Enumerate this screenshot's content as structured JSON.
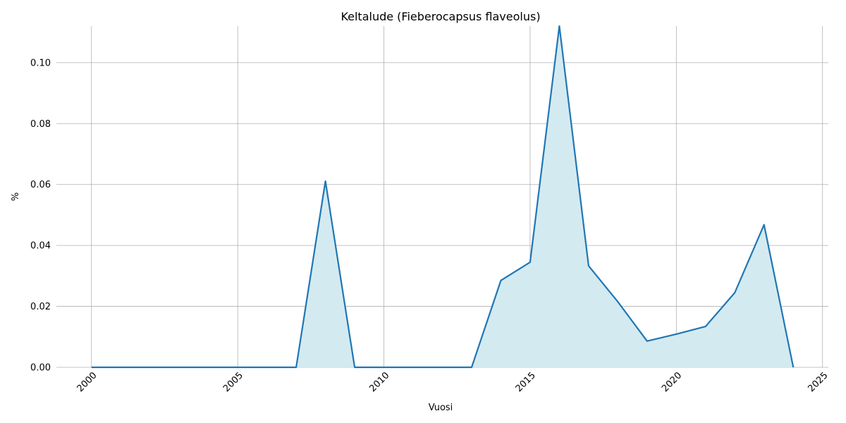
{
  "chart_data": {
    "type": "area",
    "title": "Keltalude (Fieberocapsus flaveolus)",
    "xlabel": "Vuosi",
    "ylabel": "%",
    "x": [
      2000,
      2001,
      2002,
      2003,
      2004,
      2005,
      2006,
      2007,
      2008,
      2009,
      2010,
      2011,
      2012,
      2013,
      2014,
      2015,
      2016,
      2017,
      2018,
      2019,
      2020,
      2021,
      2022,
      2023,
      2024
    ],
    "series": [
      {
        "color": "#1f77b4",
        "fill_color": "#d4eaf1",
        "values": [
          0,
          0,
          0,
          0,
          0,
          0,
          0,
          0,
          0.0611,
          0,
          0,
          0,
          0,
          0,
          0.0285,
          0.0345,
          0.112,
          0.0333,
          0.0215,
          0.0086,
          0.0109,
          0.0134,
          0.0245,
          0.0468,
          0
        ]
      }
    ],
    "xlim": [
      1998.8,
      2025.2
    ],
    "xticks": [
      2000,
      2005,
      2010,
      2015,
      2020,
      2025
    ],
    "ylim": [
      0,
      0.112
    ],
    "yticks": [
      {
        "value": 0,
        "label": "0.00"
      },
      {
        "value": 0.02,
        "label": "0.02"
      },
      {
        "value": 0.04,
        "label": "0.04"
      },
      {
        "value": 0.06,
        "label": "0.06"
      },
      {
        "value": 0.08,
        "label": "0.08"
      },
      {
        "value": 0.1,
        "label": "0.10"
      }
    ],
    "grid": true
  }
}
